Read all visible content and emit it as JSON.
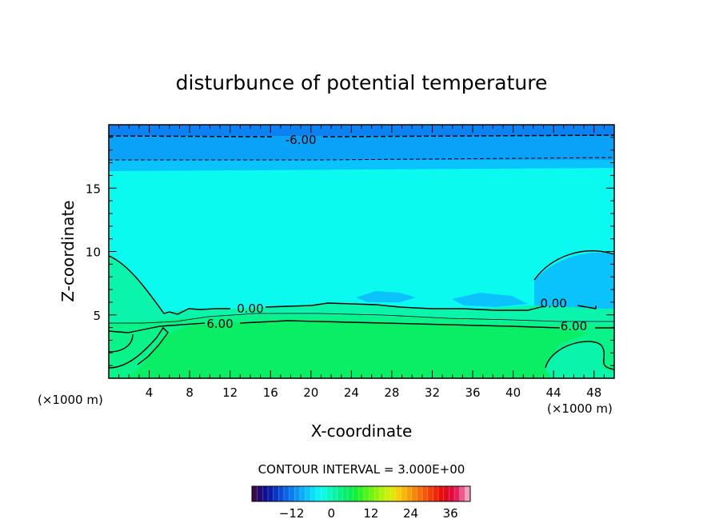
{
  "chart_data": {
    "type": "heatmap",
    "title": "disturbunce of potential temperature",
    "xlabel": "X-coordinate",
    "ylabel": "Z-coordinate",
    "x_unit": "(×1000 m)",
    "x_unit_right": "(×1000 m)",
    "xlim": [
      0,
      50
    ],
    "ylim": [
      0,
      20
    ],
    "x_ticks": [
      4,
      8,
      12,
      16,
      20,
      24,
      28,
      32,
      36,
      40,
      44,
      48
    ],
    "y_ticks": [
      5,
      10,
      15
    ],
    "contour_interval_text": "CONTOUR INTERVAL = 3.000E+00",
    "contour_labels": [
      {
        "text": "-6.00",
        "x": 19,
        "z": 18.8
      },
      {
        "text": "0.00",
        "x": 14,
        "z": 5.5
      },
      {
        "text": "6.00",
        "x": 11,
        "z": 4.3
      },
      {
        "text": "0.00",
        "x": 44,
        "z": 5.9
      },
      {
        "text": "6.00",
        "x": 46,
        "z": 4.1
      }
    ],
    "colorbar": {
      "ticks": [
        -12,
        0,
        12,
        24,
        36
      ],
      "tick_labels": [
        "−12",
        "0",
        "12",
        "24",
        "36"
      ],
      "range": [
        -24,
        42
      ],
      "colors": [
        "#3a0a4a",
        "#220a72",
        "#10108e",
        "#0a1eaa",
        "#0a36c2",
        "#0a4ed6",
        "#0a66e4",
        "#0a7ef0",
        "#0a96f4",
        "#0aaefa",
        "#0ac6fc",
        "#0adefc",
        "#0af2f4",
        "#0afce0",
        "#0af8c4",
        "#0af4a8",
        "#0af08c",
        "#0aee70",
        "#0aee54",
        "#14f038",
        "#30f224",
        "#50f418",
        "#70f410",
        "#90f40a",
        "#b0f40a",
        "#ccf00a",
        "#e2e40a",
        "#f4d00a",
        "#f8b80a",
        "#f8a00a",
        "#f8880a",
        "#f6700a",
        "#f4580a",
        "#f2400a",
        "#ee280a",
        "#e8100a",
        "#e20a1e",
        "#e20a3e",
        "#e4205e",
        "#ea5a8c",
        "#f29ebc"
      ]
    },
    "colors": {
      "level_neg9": "#0a82f2",
      "level_neg6": "#0aa2f8",
      "level_neg3": "#0ac2fc",
      "level_0": "#0afaf0",
      "level_3": "#0af4ac",
      "level_6": "#0af28a",
      "level_9": "#0aee66"
    }
  }
}
